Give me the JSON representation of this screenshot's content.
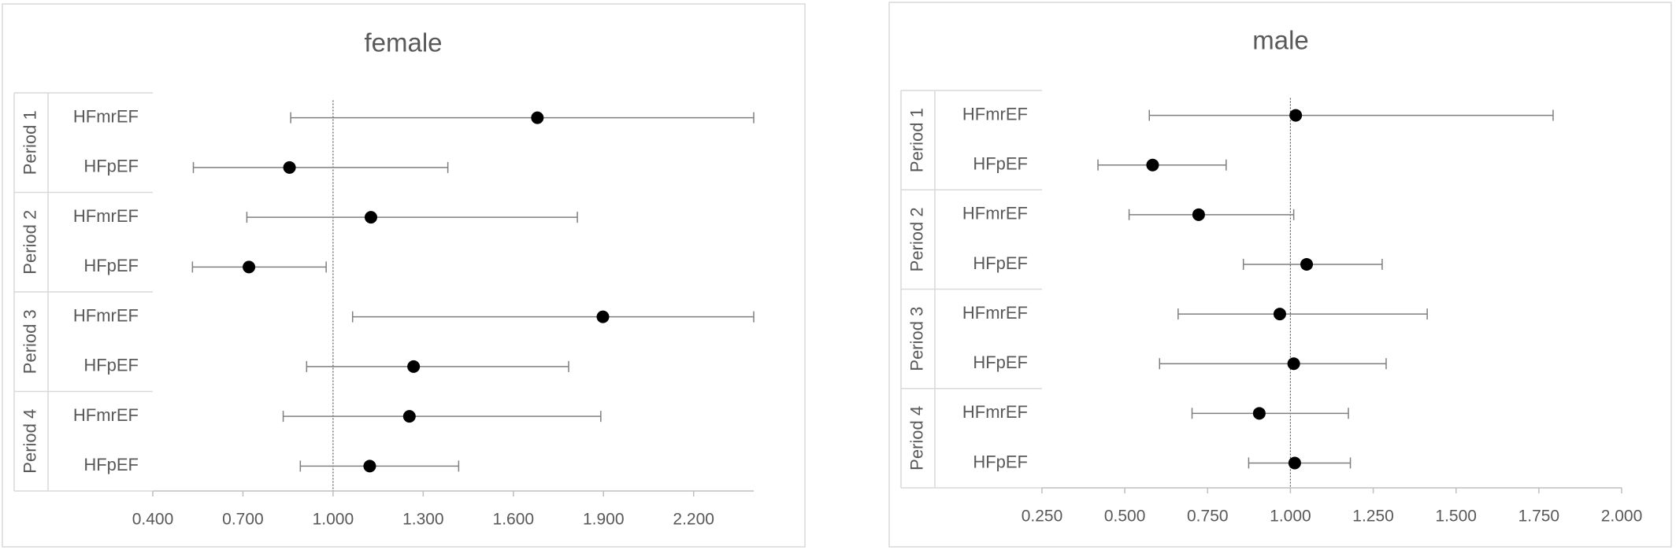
{
  "chart_data": [
    {
      "type": "forest",
      "title": "female",
      "groups": [
        "Period 1",
        "Period 2",
        "Period 3",
        "Period 4"
      ],
      "categories": [
        "HFmrEF",
        "HFpEF",
        "HFmrEF",
        "HFpEF",
        "HFmrEF",
        "HFpEF",
        "HFmrEF",
        "HFpEF"
      ],
      "values": [
        1.68,
        0.855,
        1.126,
        0.72,
        1.898,
        1.268,
        1.254,
        1.122
      ],
      "lower": [
        0.859,
        0.535,
        0.713,
        0.532,
        1.065,
        0.912,
        0.834,
        0.891
      ],
      "upper": [
        2.4,
        1.382,
        1.813,
        0.977,
        2.4,
        1.784,
        1.891,
        1.418
      ],
      "xlim": [
        0.4,
        2.4
      ],
      "xticks": [
        {
          "value": 0.4,
          "label": "0.400"
        },
        {
          "value": 0.7,
          "label": "0.700"
        },
        {
          "value": 1.0,
          "label": "1.000"
        },
        {
          "value": 1.3,
          "label": "1.300"
        },
        {
          "value": 1.6,
          "label": "1.600"
        },
        {
          "value": 1.9,
          "label": "1.900"
        },
        {
          "value": 2.2,
          "label": "2.200"
        }
      ],
      "reference_line": 1,
      "color": "#000000"
    },
    {
      "type": "forest",
      "title": "male",
      "groups": [
        "Period 1",
        "Period 2",
        "Period 3",
        "Period 4"
      ],
      "categories": [
        "HFmrEF",
        "HFpEF",
        "HFmrEF",
        "HFpEF",
        "HFmrEF",
        "HFpEF",
        "HFmrEF",
        "HFpEF"
      ],
      "values": [
        1.016,
        0.584,
        0.723,
        1.049,
        0.968,
        1.01,
        0.906,
        1.013
      ],
      "lower": [
        0.574,
        0.419,
        0.513,
        0.858,
        0.661,
        0.605,
        0.703,
        0.874
      ],
      "upper": [
        1.793,
        0.806,
        1.01,
        1.277,
        1.413,
        1.289,
        1.175,
        1.181
      ],
      "xlim": [
        0.25,
        2.0
      ],
      "xticks": [
        {
          "value": 0.25,
          "label": "0.250"
        },
        {
          "value": 0.5,
          "label": "0.500"
        },
        {
          "value": 0.75,
          "label": "0.750"
        },
        {
          "value": 1.0,
          "label": "1.000"
        },
        {
          "value": 1.25,
          "label": "1.250"
        },
        {
          "value": 1.5,
          "label": "1.500"
        },
        {
          "value": 1.75,
          "label": "1.750"
        },
        {
          "value": 2.0,
          "label": "2.000"
        }
      ],
      "reference_line": 1,
      "color": "#000000"
    }
  ]
}
